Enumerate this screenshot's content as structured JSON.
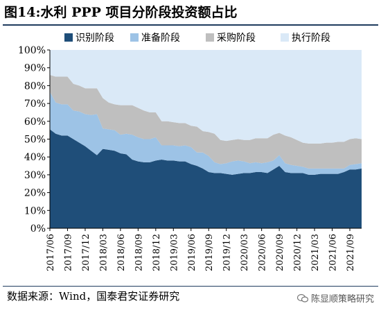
{
  "title": "图14:水利 PPP 项目分阶段投资额占比",
  "source": "数据来源：Wind，国泰君安证券研究",
  "watermark": "陈显顺策略研究",
  "chart_data": {
    "type": "area",
    "stacked": true,
    "ylim": [
      0,
      100
    ],
    "y_unit": "%",
    "y_ticks": [
      "0%",
      "10%",
      "20%",
      "30%",
      "40%",
      "50%",
      "60%",
      "70%",
      "80%",
      "90%",
      "100%"
    ],
    "x_tick_labels": [
      "2017/06",
      "2017/09",
      "2017/12",
      "2018/03",
      "2018/06",
      "2018/09",
      "2018/12",
      "2019/03",
      "2019/06",
      "2019/09",
      "2019/12",
      "2020/03",
      "2020/06",
      "2020/09",
      "2020/12",
      "2021/03",
      "2021/06",
      "2021/09"
    ],
    "x": [
      "2017/06",
      "2017/07",
      "2017/08",
      "2017/09",
      "2017/10",
      "2017/11",
      "2017/12",
      "2018/01",
      "2018/02",
      "2018/03",
      "2018/04",
      "2018/05",
      "2018/06",
      "2018/07",
      "2018/08",
      "2018/09",
      "2018/10",
      "2018/11",
      "2018/12",
      "2019/01",
      "2019/02",
      "2019/03",
      "2019/04",
      "2019/05",
      "2019/06",
      "2019/07",
      "2019/08",
      "2019/09",
      "2019/10",
      "2019/11",
      "2019/12",
      "2020/01",
      "2020/02",
      "2020/03",
      "2020/04",
      "2020/05",
      "2020/06",
      "2020/07",
      "2020/08",
      "2020/09",
      "2020/10",
      "2020/11",
      "2020/12",
      "2021/01",
      "2021/02",
      "2021/03",
      "2021/04",
      "2021/05",
      "2021/06",
      "2021/07",
      "2021/08",
      "2021/09",
      "2021/10",
      "2021/11"
    ],
    "legend_position": "top",
    "series": [
      {
        "name": "识别阶段",
        "color": "#1f4e79",
        "values": [
          55.5,
          53,
          52,
          52,
          50,
          48,
          46,
          43.5,
          41,
          44.5,
          44,
          43.5,
          42,
          41.5,
          38.5,
          37.5,
          37,
          37,
          38,
          38.5,
          38,
          38,
          37.5,
          37.5,
          36,
          35,
          33.5,
          31.5,
          31,
          31,
          30.5,
          30,
          30.5,
          31,
          31,
          31.5,
          31.5,
          31,
          33,
          35,
          31.5,
          31,
          31,
          31,
          30,
          30,
          30.5,
          30.5,
          30.5,
          30.5,
          31.5,
          33,
          33,
          33.5
        ]
      },
      {
        "name": "准备阶段",
        "color": "#9dc3e6",
        "values": [
          21,
          17.5,
          17.5,
          17.5,
          16,
          17.5,
          18,
          20,
          23,
          11.5,
          11.5,
          11.5,
          10.5,
          11.5,
          14,
          13.5,
          13,
          13,
          13,
          8,
          8.5,
          8.5,
          8.5,
          9,
          9.5,
          7.5,
          9,
          9,
          6,
          5,
          6,
          7.5,
          7.5,
          6.5,
          5.5,
          5.5,
          5,
          6,
          5,
          6,
          5,
          4.5,
          4,
          3.5,
          3.5,
          3.5,
          3,
          3,
          3,
          3,
          2,
          2.5,
          3,
          3
        ]
      },
      {
        "name": "采购阶段",
        "color": "#bfbfbf",
        "values": [
          9.5,
          14.5,
          15.5,
          15.5,
          15,
          14.5,
          14.5,
          15,
          14.5,
          17,
          15,
          14.5,
          16.5,
          16,
          16.5,
          16.5,
          16,
          15,
          14,
          13.5,
          13.5,
          13,
          13,
          12.5,
          12,
          14.5,
          12,
          13.5,
          16,
          13.5,
          12.5,
          12,
          12,
          12,
          13,
          13.5,
          14,
          13.5,
          14.5,
          12.5,
          15.5,
          15.5,
          14.5,
          13.5,
          14,
          14,
          14,
          14.5,
          14.5,
          15,
          15,
          14.5,
          14.5,
          13.5
        ]
      },
      {
        "name": "执行阶段",
        "color": "#dae9f7",
        "values": [
          14,
          15,
          15,
          15,
          19,
          20,
          21.5,
          21.5,
          21.5,
          27,
          29.5,
          30.5,
          31,
          31,
          31,
          32.5,
          34,
          35,
          35,
          40,
          40,
          40.5,
          41,
          41,
          42.5,
          43,
          45.5,
          46,
          47,
          50.5,
          51,
          50.5,
          50,
          50.5,
          50.5,
          49.5,
          49.5,
          49.5,
          47.5,
          46.5,
          48,
          49,
          50.5,
          52,
          52.5,
          52.5,
          52.5,
          52,
          52,
          51.5,
          51.5,
          50,
          49.5,
          50
        ]
      }
    ]
  }
}
